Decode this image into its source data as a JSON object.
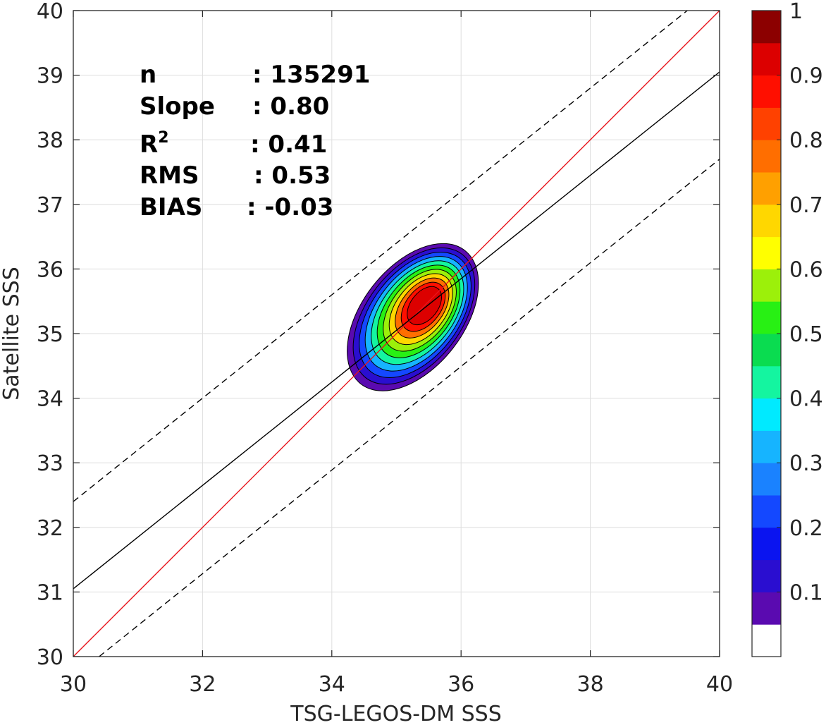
{
  "chart_data": {
    "type": "contour",
    "xlabel": "TSG-LEGOS-DM SSS",
    "ylabel": "Satellite SSS",
    "xlim": [
      30,
      40
    ],
    "ylim": [
      30,
      40
    ],
    "xticks": [
      "30",
      "32",
      "34",
      "36",
      "38",
      "40"
    ],
    "yticks": [
      "30",
      "31",
      "32",
      "33",
      "34",
      "35",
      "36",
      "37",
      "38",
      "39",
      "40"
    ],
    "grid": true,
    "stats": [
      {
        "label": "n",
        "value": ": 135291"
      },
      {
        "label": "Slope",
        "value": ": 0.80"
      },
      {
        "label": "R",
        "superscript": "2",
        "value": ": 0.41"
      },
      {
        "label": "RMS",
        "value": ": 0.53"
      },
      {
        "label": "BIAS",
        "value": ": -0.03"
      }
    ],
    "lines": [
      {
        "id": "one-to-one",
        "color": "#e8141c",
        "style": "solid",
        "x": [
          30,
          40
        ],
        "y": [
          30,
          40
        ]
      },
      {
        "id": "regression",
        "color": "#000000",
        "style": "solid",
        "x": [
          30,
          40
        ],
        "y": [
          31.05,
          39.05
        ]
      },
      {
        "id": "upper-bound",
        "color": "#000000",
        "style": "dashed",
        "x": [
          30,
          39.5
        ],
        "y": [
          32.4,
          40
        ]
      },
      {
        "id": "lower-bound",
        "color": "#000000",
        "style": "dashed",
        "x": [
          30.4,
          40
        ],
        "y": [
          30,
          37.7
        ]
      }
    ],
    "density_center": {
      "x": 35.45,
      "y": 35.45
    },
    "contour_levels": [
      0.05,
      0.1,
      0.2,
      0.3,
      0.4,
      0.5,
      0.6,
      0.7,
      0.8,
      0.9,
      0.95
    ],
    "colorbar": {
      "ticks": [
        "0.1",
        "0.2",
        "0.3",
        "0.4",
        "0.5",
        "0.6",
        "0.7",
        "0.8",
        "0.9",
        "1"
      ],
      "min": 0,
      "max": 1,
      "colors": [
        "#ffffff",
        "#5a0ab0",
        "#2a0ed0",
        "#0a14f0",
        "#1448ff",
        "#1a82ff",
        "#16b4ff",
        "#00eaff",
        "#14f5a0",
        "#0adc50",
        "#28f014",
        "#9cf00a",
        "#ffff00",
        "#ffd700",
        "#ffa000",
        "#ff6e00",
        "#ff4100",
        "#ff0f00",
        "#dc0000",
        "#8c0000"
      ]
    }
  }
}
